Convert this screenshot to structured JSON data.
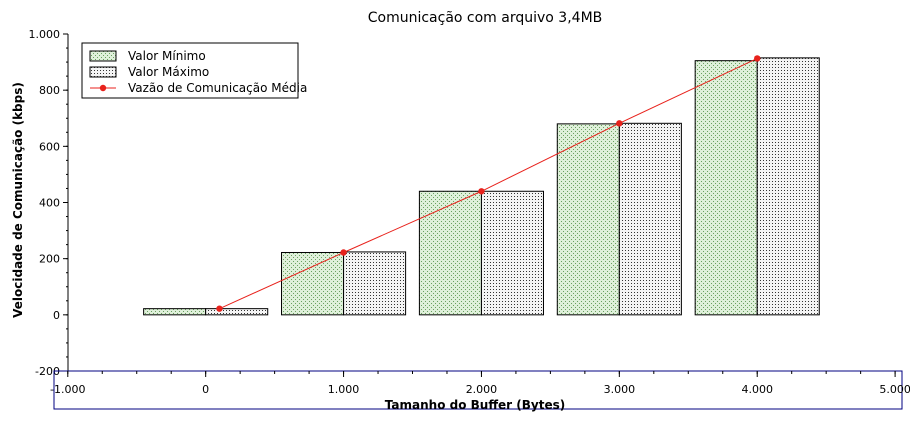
{
  "chart_data": {
    "type": "bar",
    "title": "Comunicação com arquivo 3,4MB",
    "xlabel": "Tamanho do Buffer (Bytes)",
    "ylabel": "Velocidade de Comunicação (kbps)",
    "xlim": [
      -1100,
      5050
    ],
    "ylim": [
      -200,
      1000
    ],
    "x_ticks": [
      {
        "value": -1000,
        "label": "-1.000"
      },
      {
        "value": 0,
        "label": "0"
      },
      {
        "value": 1000,
        "label": "1.000"
      },
      {
        "value": 2000,
        "label": "2.000"
      },
      {
        "value": 3000,
        "label": "3.000"
      },
      {
        "value": 4000,
        "label": "4.000"
      },
      {
        "value": 5000,
        "label": "5.000"
      }
    ],
    "y_ticks": [
      {
        "value": -200,
        "label": "-200"
      },
      {
        "value": 0,
        "label": "0"
      },
      {
        "value": 200,
        "label": "200"
      },
      {
        "value": 400,
        "label": "400"
      },
      {
        "value": 600,
        "label": "600"
      },
      {
        "value": 800,
        "label": "800"
      },
      {
        "value": 1000,
        "label": "1.000"
      }
    ],
    "bar_groups": [
      {
        "x": 0,
        "min": 22,
        "max": 22
      },
      {
        "x": 1000,
        "min": 222,
        "max": 224
      },
      {
        "x": 2000,
        "min": 440,
        "max": 440
      },
      {
        "x": 3000,
        "min": 680,
        "max": 682
      },
      {
        "x": 4000,
        "min": 905,
        "max": 915
      }
    ],
    "series": [
      {
        "name": "Valor Mínimo",
        "kind": "bar",
        "pattern": "green-dots"
      },
      {
        "name": "Valor Máximo",
        "kind": "bar",
        "pattern": "black-dots"
      },
      {
        "name": "Vazão de Comunicação Média",
        "kind": "line",
        "color": "#e8221c",
        "x": [
          100,
          1000,
          2000,
          3000,
          4000
        ],
        "y": [
          22,
          222,
          440,
          682,
          913
        ]
      }
    ],
    "legend_position": "top-left",
    "grid": false,
    "colors": {
      "min_fill": "#dff0da",
      "min_dot": "#6aa060",
      "max_fill": "#f4f4f4",
      "max_dot": "#333333",
      "line": "#e8221c",
      "axis_box": "#000080"
    }
  }
}
